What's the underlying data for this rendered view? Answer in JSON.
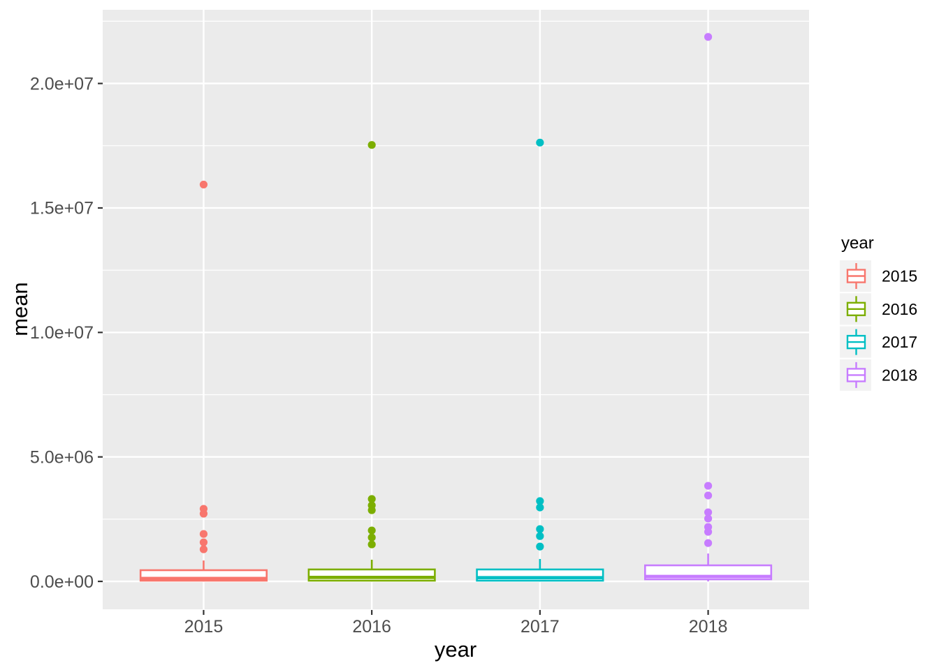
{
  "chart_data": {
    "type": "boxplot",
    "title": "",
    "xlabel": "year",
    "ylabel": "mean",
    "categories": [
      "2015",
      "2016",
      "2017",
      "2018"
    ],
    "y_ticks": [
      {
        "label": "0.0e+00",
        "value": 0
      },
      {
        "label": "5.0e+06",
        "value": 5000000
      },
      {
        "label": "1.0e+07",
        "value": 10000000
      },
      {
        "label": "1.5e+07",
        "value": 15000000
      },
      {
        "label": "2.0e+07",
        "value": 20000000
      }
    ],
    "y_minor_values": [
      2500000,
      7500000,
      12500000,
      17500000,
      22500000
    ],
    "ylim": [
      -1120000,
      22960000
    ],
    "grid": true,
    "legend_position": "right",
    "series": [
      {
        "name": "2015",
        "color": "#F8766D",
        "q1": 30000,
        "median": 120000,
        "q3": 450000,
        "whisker_low": 0,
        "whisker_high": 840000,
        "outliers": [
          1290000,
          1570000,
          1905000,
          2720000,
          2915000,
          15940000
        ]
      },
      {
        "name": "2016",
        "color": "#7CAE00",
        "q1": 30000,
        "median": 160000,
        "q3": 480000,
        "whisker_low": 0,
        "whisker_high": 870000,
        "outliers": [
          1485000,
          1765000,
          2045000,
          2860000,
          3055000,
          3310000,
          17530000
        ]
      },
      {
        "name": "2017",
        "color": "#00BFC4",
        "q1": 30000,
        "median": 150000,
        "q3": 480000,
        "whisker_low": 0,
        "whisker_high": 900000,
        "outliers": [
          1400000,
          1820000,
          2100000,
          2970000,
          3225000,
          17625000
        ]
      },
      {
        "name": "2018",
        "color": "#C77CFF",
        "q1": 85000,
        "median": 200000,
        "q3": 645000,
        "whisker_low": 0,
        "whisker_high": 1120000,
        "outliers": [
          1540000,
          1990000,
          2185000,
          2525000,
          2775000,
          3450000,
          3840000,
          21870000
        ]
      }
    ],
    "legend": {
      "title": "year",
      "entries": [
        "2015",
        "2016",
        "2017",
        "2018"
      ]
    },
    "style": {
      "panel_bg": "#EBEBEB",
      "grid_color": "#FFFFFF",
      "legend_key_bg": "#F2F2F2",
      "box_fill": "#FFFFFF",
      "tick_mark_color": "#333333",
      "tick_text_color": "#4D4D4D",
      "title_text_color": "#000000"
    }
  }
}
